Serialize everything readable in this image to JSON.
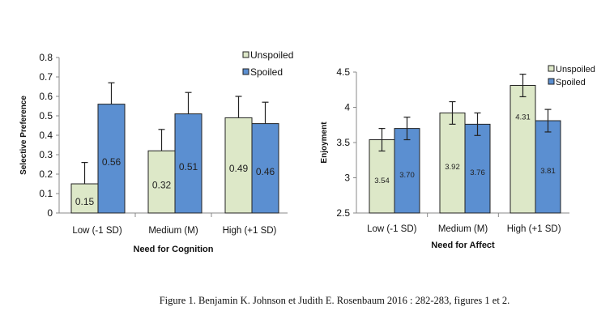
{
  "caption": "Figure 1. Benjamin K. Johnson et Judith E. Rosenbaum 2016 : 282-283, figures 1 et 2.",
  "colors": {
    "unspoiled": "#dde8c8",
    "spoiled": "#5b8fd1",
    "axis": "#888888"
  },
  "chart_data": [
    {
      "type": "bar",
      "categories": [
        "Low (-1 SD)",
        "Medium (M)",
        "High (+1 SD)"
      ],
      "series": [
        {
          "name": "Unspoiled",
          "values": [
            0.15,
            0.32,
            0.49
          ],
          "labels": [
            "0.15",
            "0.32",
            "0.49"
          ],
          "error": [
            0.11,
            0.11,
            0.11
          ]
        },
        {
          "name": "Spoiled",
          "values": [
            0.56,
            0.51,
            0.46
          ],
          "labels": [
            "0.56",
            "0.51",
            "0.46"
          ],
          "error": [
            0.11,
            0.11,
            0.11
          ]
        }
      ],
      "xlabel": "Need for Cognition",
      "ylabel": "Selective Preference",
      "ylim": [
        0,
        0.8
      ],
      "yticks": [
        "0",
        "0.1",
        "0.2",
        "0.3",
        "0.4",
        "0.5",
        "0.6",
        "0.7",
        "0.8"
      ],
      "legend": "top-right"
    },
    {
      "type": "bar",
      "categories": [
        "Low (-1 SD)",
        "Medium (M)",
        "High (+1 SD)"
      ],
      "series": [
        {
          "name": "Unspoiled",
          "values": [
            3.54,
            3.92,
            4.31
          ],
          "labels": [
            "3.54",
            "3.92",
            "4.31"
          ],
          "error": [
            0.16,
            0.16,
            0.16
          ]
        },
        {
          "name": "Spoiled",
          "values": [
            3.7,
            3.76,
            3.81
          ],
          "labels": [
            "3.70",
            "3.76",
            "3.81"
          ],
          "error": [
            0.16,
            0.16,
            0.16
          ]
        }
      ],
      "xlabel": "Need for Affect",
      "ylabel": "Enjoyment",
      "ylim": [
        2.5,
        4.5
      ],
      "yticks": [
        "2.5",
        "3",
        "3.5",
        "4",
        "4.5"
      ],
      "legend": "top-right"
    }
  ]
}
